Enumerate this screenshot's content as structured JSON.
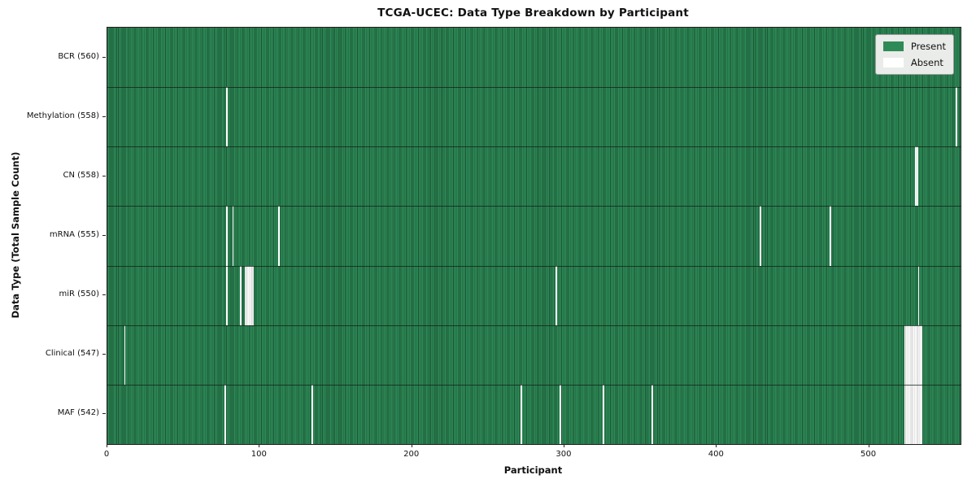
{
  "chart_data": {
    "type": "heatmap",
    "title": "TCGA-UCEC: Data Type Breakdown by Participant",
    "xlabel": "Participant",
    "ylabel": "Data Type (Total Sample Count)",
    "x_ticks": [
      0,
      100,
      200,
      300,
      400,
      500
    ],
    "x_max": 560,
    "total_participants": 560,
    "grid": false,
    "legend_position": "upper right",
    "legend": [
      {
        "label": "Present",
        "color": "#2e8b57"
      },
      {
        "label": "Absent",
        "color": "#ffffff"
      }
    ],
    "present_color": "#2e8b57",
    "bar_edge_color": "#1b5334",
    "absent_color": "#ffffff",
    "rows": [
      {
        "name": "bcr",
        "label": "BCR (560)",
        "present_count": 560,
        "absent_participants": []
      },
      {
        "name": "methylation",
        "label": "Methylation (558)",
        "present_count": 558,
        "absent_participants": [
          78,
          557
        ]
      },
      {
        "name": "cn",
        "label": "CN (558)",
        "present_count": 558,
        "absent_participants": [
          530,
          531
        ]
      },
      {
        "name": "mrna",
        "label": "mRNA (555)",
        "present_count": 555,
        "absent_participants": [
          78,
          82,
          112,
          428,
          474
        ]
      },
      {
        "name": "mir",
        "label": "miR (550)",
        "present_count": 550,
        "absent_participants": [
          78,
          87,
          90,
          91,
          92,
          93,
          94,
          95,
          294,
          532
        ]
      },
      {
        "name": "clinical",
        "label": "Clinical (547)",
        "present_count": 547,
        "absent_participants": [
          11,
          523,
          524,
          525,
          526,
          527,
          528,
          529,
          530,
          531,
          532,
          533,
          534
        ]
      },
      {
        "name": "maf",
        "label": "MAF (542)",
        "present_count": 542,
        "absent_participants": [
          77,
          134,
          271,
          297,
          325,
          357,
          523,
          524,
          525,
          526,
          527,
          528,
          529,
          530,
          531,
          532,
          533,
          534
        ]
      }
    ]
  }
}
